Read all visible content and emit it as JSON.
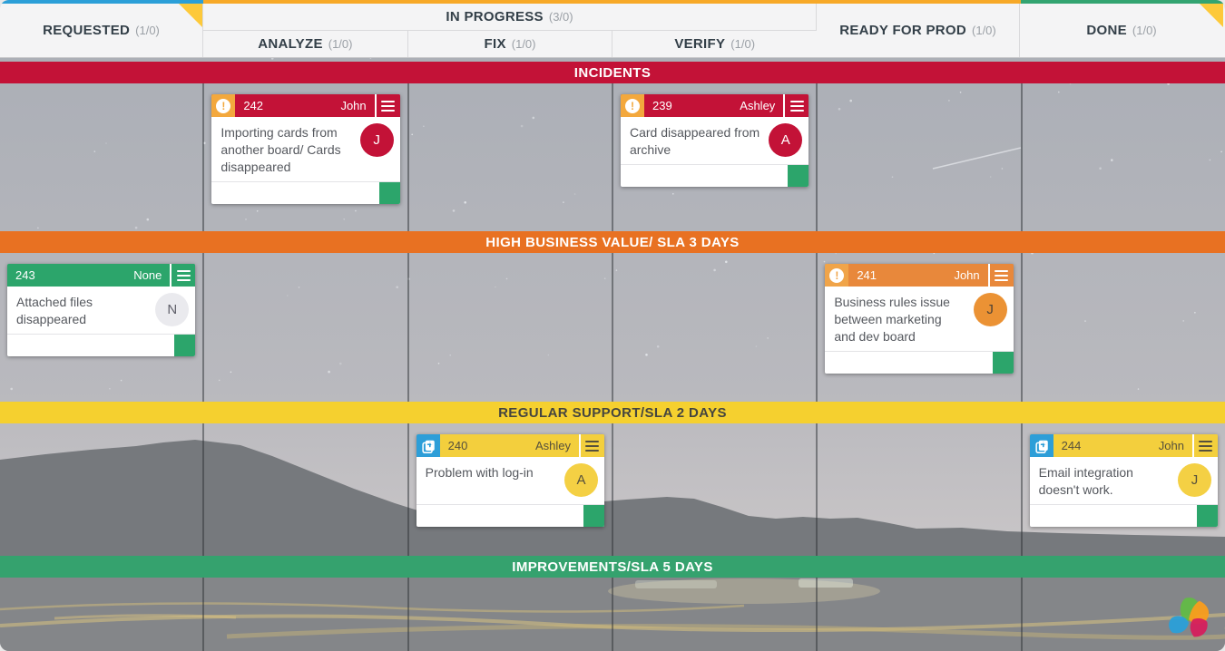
{
  "strip": {
    "requested": "#2b9fd8",
    "in_progress": "#f7a928",
    "done": "#33a471",
    "corner_fold": "#fdc93a"
  },
  "columns": {
    "requested": {
      "label": "REQUESTED",
      "count": "(1/0)"
    },
    "in_progress": {
      "label": "IN PROGRESS",
      "count": "(3/0)"
    },
    "analyze": {
      "label": "ANALYZE",
      "count": "(1/0)"
    },
    "fix": {
      "label": "FIX",
      "count": "(1/0)"
    },
    "verify": {
      "label": "VERIFY",
      "count": "(1/0)"
    },
    "ready_for_prod": {
      "label": "READY FOR PROD",
      "count": "(1/0)"
    },
    "done": {
      "label": "DONE",
      "count": "(1/0)"
    }
  },
  "swimlanes": {
    "incidents": {
      "label": "INCIDENTS",
      "color": "#c31237",
      "text_color": "#ffffff"
    },
    "high_value": {
      "label": "HIGH BUSINESS VALUE/ SLA 3 DAYS",
      "color": "#e87122",
      "text_color": "#ffffff"
    },
    "regular": {
      "label": "REGULAR SUPPORT/SLA 2 DAYS",
      "color": "#f5d02f",
      "text_color": "#45453f"
    },
    "improvements": {
      "label": "IMPROVEMENTS/SLA 5 DAYS",
      "color": "#35a26e",
      "text_color": "#ffffff"
    }
  },
  "cards": [
    {
      "id": "242",
      "assignee": "John",
      "title": "Importing cards from another board/ Cards disappeared",
      "column": "analyze",
      "lane": "incidents",
      "icon": "exclamation",
      "header_color": "#c31237",
      "header_text_color": "#ffffff",
      "icon_bg": "#f3a83d",
      "avatar_letter": "J",
      "avatar_bg": "#c31237",
      "avatar_text_color": "#ffffff",
      "flag_color": "#2ca56b"
    },
    {
      "id": "239",
      "assignee": "Ashley",
      "title": "Card disappeared from archive",
      "column": "verify",
      "lane": "incidents",
      "icon": "exclamation",
      "header_color": "#c31237",
      "header_text_color": "#ffffff",
      "icon_bg": "#f3a83d",
      "avatar_letter": "A",
      "avatar_bg": "#c31237",
      "avatar_text_color": "#ffffff",
      "flag_color": "#2ca56b"
    },
    {
      "id": "243",
      "assignee": "None",
      "title": "Attached files disappeared",
      "column": "requested",
      "lane": "high_value",
      "icon": "none",
      "header_color": "#2ca56b",
      "header_text_color": "#ffffff",
      "icon_bg": "",
      "avatar_letter": "N",
      "avatar_bg": "#eaeaee",
      "avatar_text_color": "#60606a",
      "flag_color": "#2ca56b"
    },
    {
      "id": "241",
      "assignee": "John",
      "title": "Business rules issue between marketing and dev board",
      "column": "ready_for_prod",
      "lane": "high_value",
      "icon": "exclamation",
      "header_color": "#e8883b",
      "header_text_color": "#ffffff",
      "icon_bg": "#f0a449",
      "avatar_letter": "J",
      "avatar_bg": "#eb9234",
      "avatar_text_color": "#4e4234",
      "flag_color": "#2ca56b"
    },
    {
      "id": "240",
      "assignee": "Ashley",
      "title": "Problem with log-in",
      "column": "fix",
      "lane": "regular",
      "icon": "add-card",
      "header_color": "#f3cf3d",
      "header_text_color": "#56503c",
      "icon_bg": "#2d9ed8",
      "avatar_letter": "A",
      "avatar_bg": "#f4d044",
      "avatar_text_color": "#56503c",
      "flag_color": "#2ca56b"
    },
    {
      "id": "244",
      "assignee": "John",
      "title": "Email integration doesn't work.",
      "column": "done",
      "lane": "regular",
      "icon": "add-card",
      "header_color": "#f3cf3d",
      "header_text_color": "#56503c",
      "icon_bg": "#2d9ed8",
      "avatar_letter": "J",
      "avatar_bg": "#f4d044",
      "avatar_text_color": "#56503c",
      "flag_color": "#2ca56b"
    }
  ],
  "footer_logo": {
    "icon": "kanbanize-logo"
  }
}
